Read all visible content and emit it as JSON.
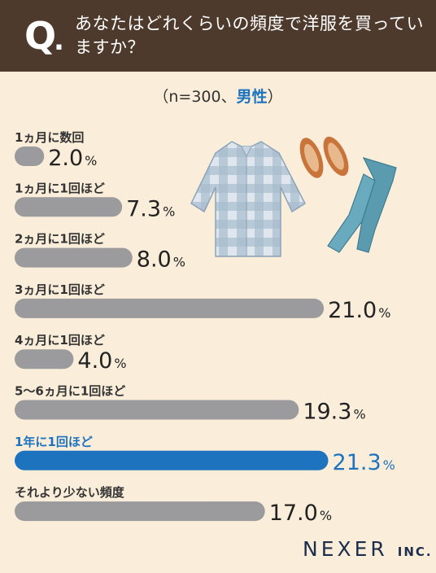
{
  "header": {
    "q_mark": "Q",
    "q_dot": ".",
    "question": "あなたはどれくらいの頻度で洋服を買っていますか？"
  },
  "subtitle": {
    "prefix": "（n=300、",
    "highlight": "男性",
    "suffix": "）"
  },
  "chart_data": {
    "type": "bar",
    "orientation": "horizontal",
    "categories": [
      "1ヵ月に数回",
      "1ヵ月に1回ほど",
      "2ヵ月に1回ほど",
      "3ヵ月に1回ほど",
      "4ヵ月に1回ほど",
      "5〜6ヵ月に1回ほど",
      "1年に1回ほど",
      "それより少ない頻度"
    ],
    "values": [
      2.0,
      7.3,
      8.0,
      21.0,
      4.0,
      19.3,
      21.3,
      17.0
    ],
    "unit": "%",
    "highlight_index": 6,
    "colors": {
      "bar": "#9b9b9d",
      "highlight": "#1e73be",
      "text": "#222222"
    }
  },
  "logo": {
    "main": "NEXER",
    "suffix": "INC."
  }
}
